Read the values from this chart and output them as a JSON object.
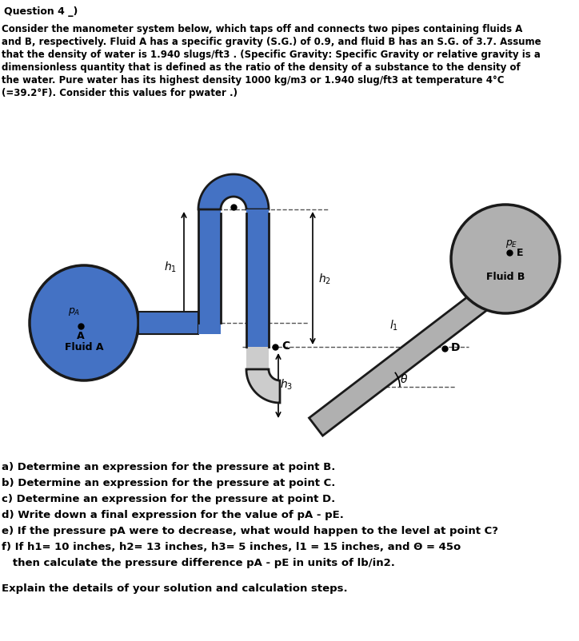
{
  "title_line": "Question 4 _)",
  "para1": "Consider the manometer system below, which taps off and connects two pipes containing fluids A",
  "para2": "and B, respectively. Fluid A has a specific gravity (S.G.) of 0.9, and fluid B has an S.G. of 3.7. Assume",
  "para3": "that the density of water is 1.940 slugs/ft3 . (Specific Gravity: Specific Gravity or relative gravity is a",
  "para4": "dimensionless quantity that is defined as the ratio of the density of a substance to the density of",
  "para5": "the water. Pure water has its highest density 1000 kg/m3 or 1.940 slug/ft3 at temperature 4°C",
  "para6": "(=39.2°F). Consider this values for pwater .)",
  "q_a": "a) Determine an expression for the pressure at point B.",
  "q_b": "b) Determine an expression for the pressure at point C.",
  "q_c": "c) Determine an expression for the pressure at point D.",
  "q_d": "d) Write down a final expression for the value of pA - pE.",
  "q_e": "e) If the pressure pA were to decrease, what would happen to the level at point C?",
  "q_f": "f) If h1= 10 inches, h2= 13 inches, h3= 5 inches, l1 = 15 inches, and Θ = 45o",
  "q_f2": "   then calculate the pressure difference pA - pE in units of lb/in2.",
  "q_g": "Explain the details of your solution and calculation steps.",
  "fluid_a_color": "#4472c4",
  "fluid_b_color": "#b0b0b0",
  "tube_blue_color": "#4472c4",
  "tube_gray_color": "#b0b0b0",
  "tube_outline_color": "#1a1a1a",
  "dashed_color": "#555555",
  "bg_color": "#ffffff",
  "text_color": "#000000",
  "font_size_title": 10,
  "font_size_body": 9,
  "font_size_question": 10
}
